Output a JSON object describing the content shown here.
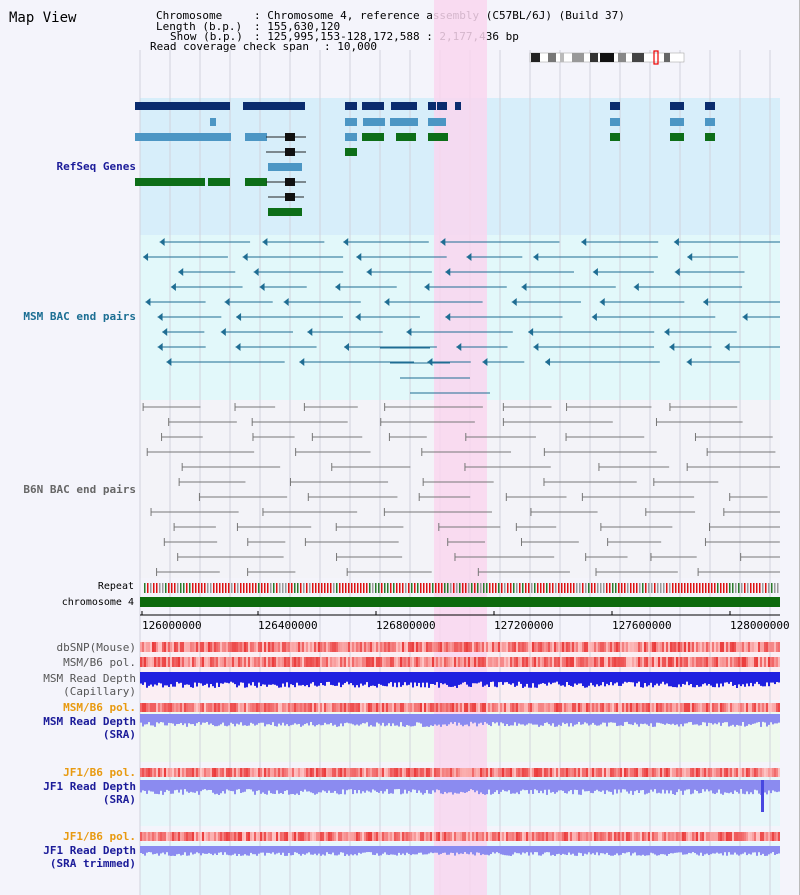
{
  "title": "Map View",
  "header": {
    "chromosome_key": "Chromosome",
    "chromosome_value": "Chromosome 4, reference assembly (C57BL/6J) (Build 37)",
    "length_key": "Length (b.p.)",
    "length_value": "155,630,120",
    "show_key": "Show (b.p.)",
    "show_value": "125,995,153-128,172,588 : 2,177,436 bp",
    "coverage_key": "Read coverage check span",
    "coverage_value": "10,000"
  },
  "tracks": {
    "refseq": "RefSeq Genes",
    "msm_bac": "MSM BAC end pairs",
    "b6n_bac": "B6N BAC end pairs",
    "repeat": "Repeat",
    "chromosome": "chromosome 4",
    "dbsnp": "dbSNP(Mouse)",
    "msm_pol": "MSM/B6 pol.",
    "msm_depth_cap_1": "MSM Read Depth",
    "msm_depth_cap_2": "(Capillary)",
    "msm_pol_2": "MSM/B6 pol.",
    "msm_depth_sra_1": "MSM Read Depth",
    "msm_depth_sra_2": "(SRA)",
    "jf1_pol": "JF1/B6 pol.",
    "jf1_depth_sra_1": "JF1 Read Depth",
    "jf1_depth_sra_2": "(SRA)",
    "jf1_pol_2": "JF1/B6 pol.",
    "jf1_depth_trim_1": "JF1 Read Depth",
    "jf1_depth_trim_2": "(SRA trimmed)"
  },
  "axis": {
    "ticks": [
      "126000000",
      "126400000",
      "126800000",
      "127200000",
      "127600000",
      "128000000"
    ]
  },
  "colors": {
    "highlight": "#f9d6ef",
    "refseq_bg": "#d7eefa",
    "msm_bg": "#e2f8fa",
    "b6n_bg": "#f3f3f8",
    "dark_navy": "#0a2c6e",
    "mid_blue": "#4c96c4",
    "green": "#0d6e18",
    "msm_pair": "#1f6d93",
    "b6n_pair": "#777777",
    "chrom_green": "#0c6a0c",
    "snp_red": "#f06060",
    "depth_blue": "#2020e0",
    "depth_light": "#8b8bf0",
    "label_navy": "#1b1b99",
    "label_teal": "#1b6e93",
    "label_gray": "#555555",
    "label_orange": "#e89a10"
  }
}
